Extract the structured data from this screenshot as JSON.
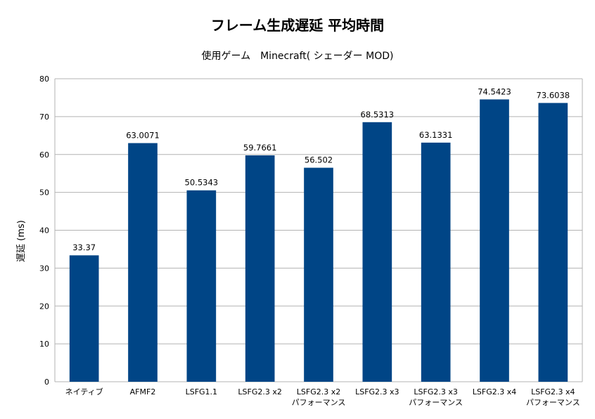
{
  "chart_data": {
    "type": "bar",
    "title": "フレーム生成遅延 平均時間",
    "subtitle": "使用ゲーム　Minecraft( シェーダー MOD)",
    "xlabel": "",
    "ylabel": "遅延 (ms)",
    "ylim": [
      0,
      80
    ],
    "yticks": [
      0,
      10,
      20,
      30,
      40,
      50,
      60,
      70,
      80
    ],
    "grid": true,
    "legend": "none",
    "bar_color": "#004586",
    "categories": [
      [
        "ネイティブ"
      ],
      [
        "AFMF2"
      ],
      [
        "LSFG1.1"
      ],
      [
        "LSFG2.3 x2"
      ],
      [
        "LSFG2.3 x2",
        "パフォーマンス"
      ],
      [
        "LSFG2.3 x3"
      ],
      [
        "LSFG2.3 x3",
        "パフォーマンス"
      ],
      [
        "LSFG2.3 x4"
      ],
      [
        "LSFG2.3 x4",
        "パフォーマンス"
      ]
    ],
    "values": [
      33.37,
      63.0071,
      50.5343,
      59.7661,
      56.502,
      68.5313,
      63.1331,
      74.5423,
      73.6038
    ],
    "data_labels": [
      "33.37",
      "63.0071",
      "50.5343",
      "59.7661",
      "56.502",
      "68.5313",
      "63.1331",
      "74.5423",
      "73.6038"
    ]
  }
}
